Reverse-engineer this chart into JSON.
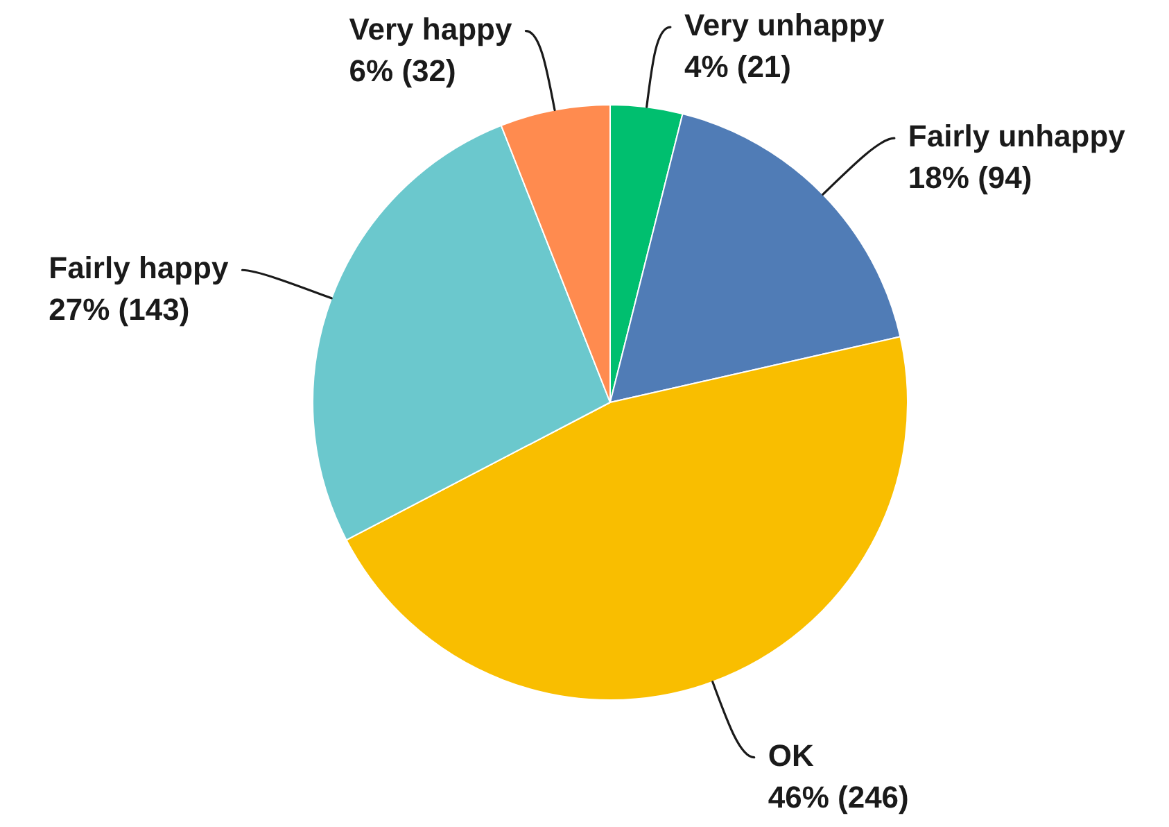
{
  "chart_data": {
    "type": "pie",
    "categories": [
      "Very unhappy",
      "Fairly unhappy",
      "OK",
      "Fairly happy",
      "Very happy"
    ],
    "values": [
      21,
      94,
      246,
      143,
      32
    ],
    "colors": [
      "#00bf6f",
      "#507cb6",
      "#f9be00",
      "#6bc8cd",
      "#ff8b4f"
    ],
    "value_labels": [
      "4% (21)",
      "18% (94)",
      "46% (246)",
      "27% (143)",
      "6% (32)"
    ]
  }
}
